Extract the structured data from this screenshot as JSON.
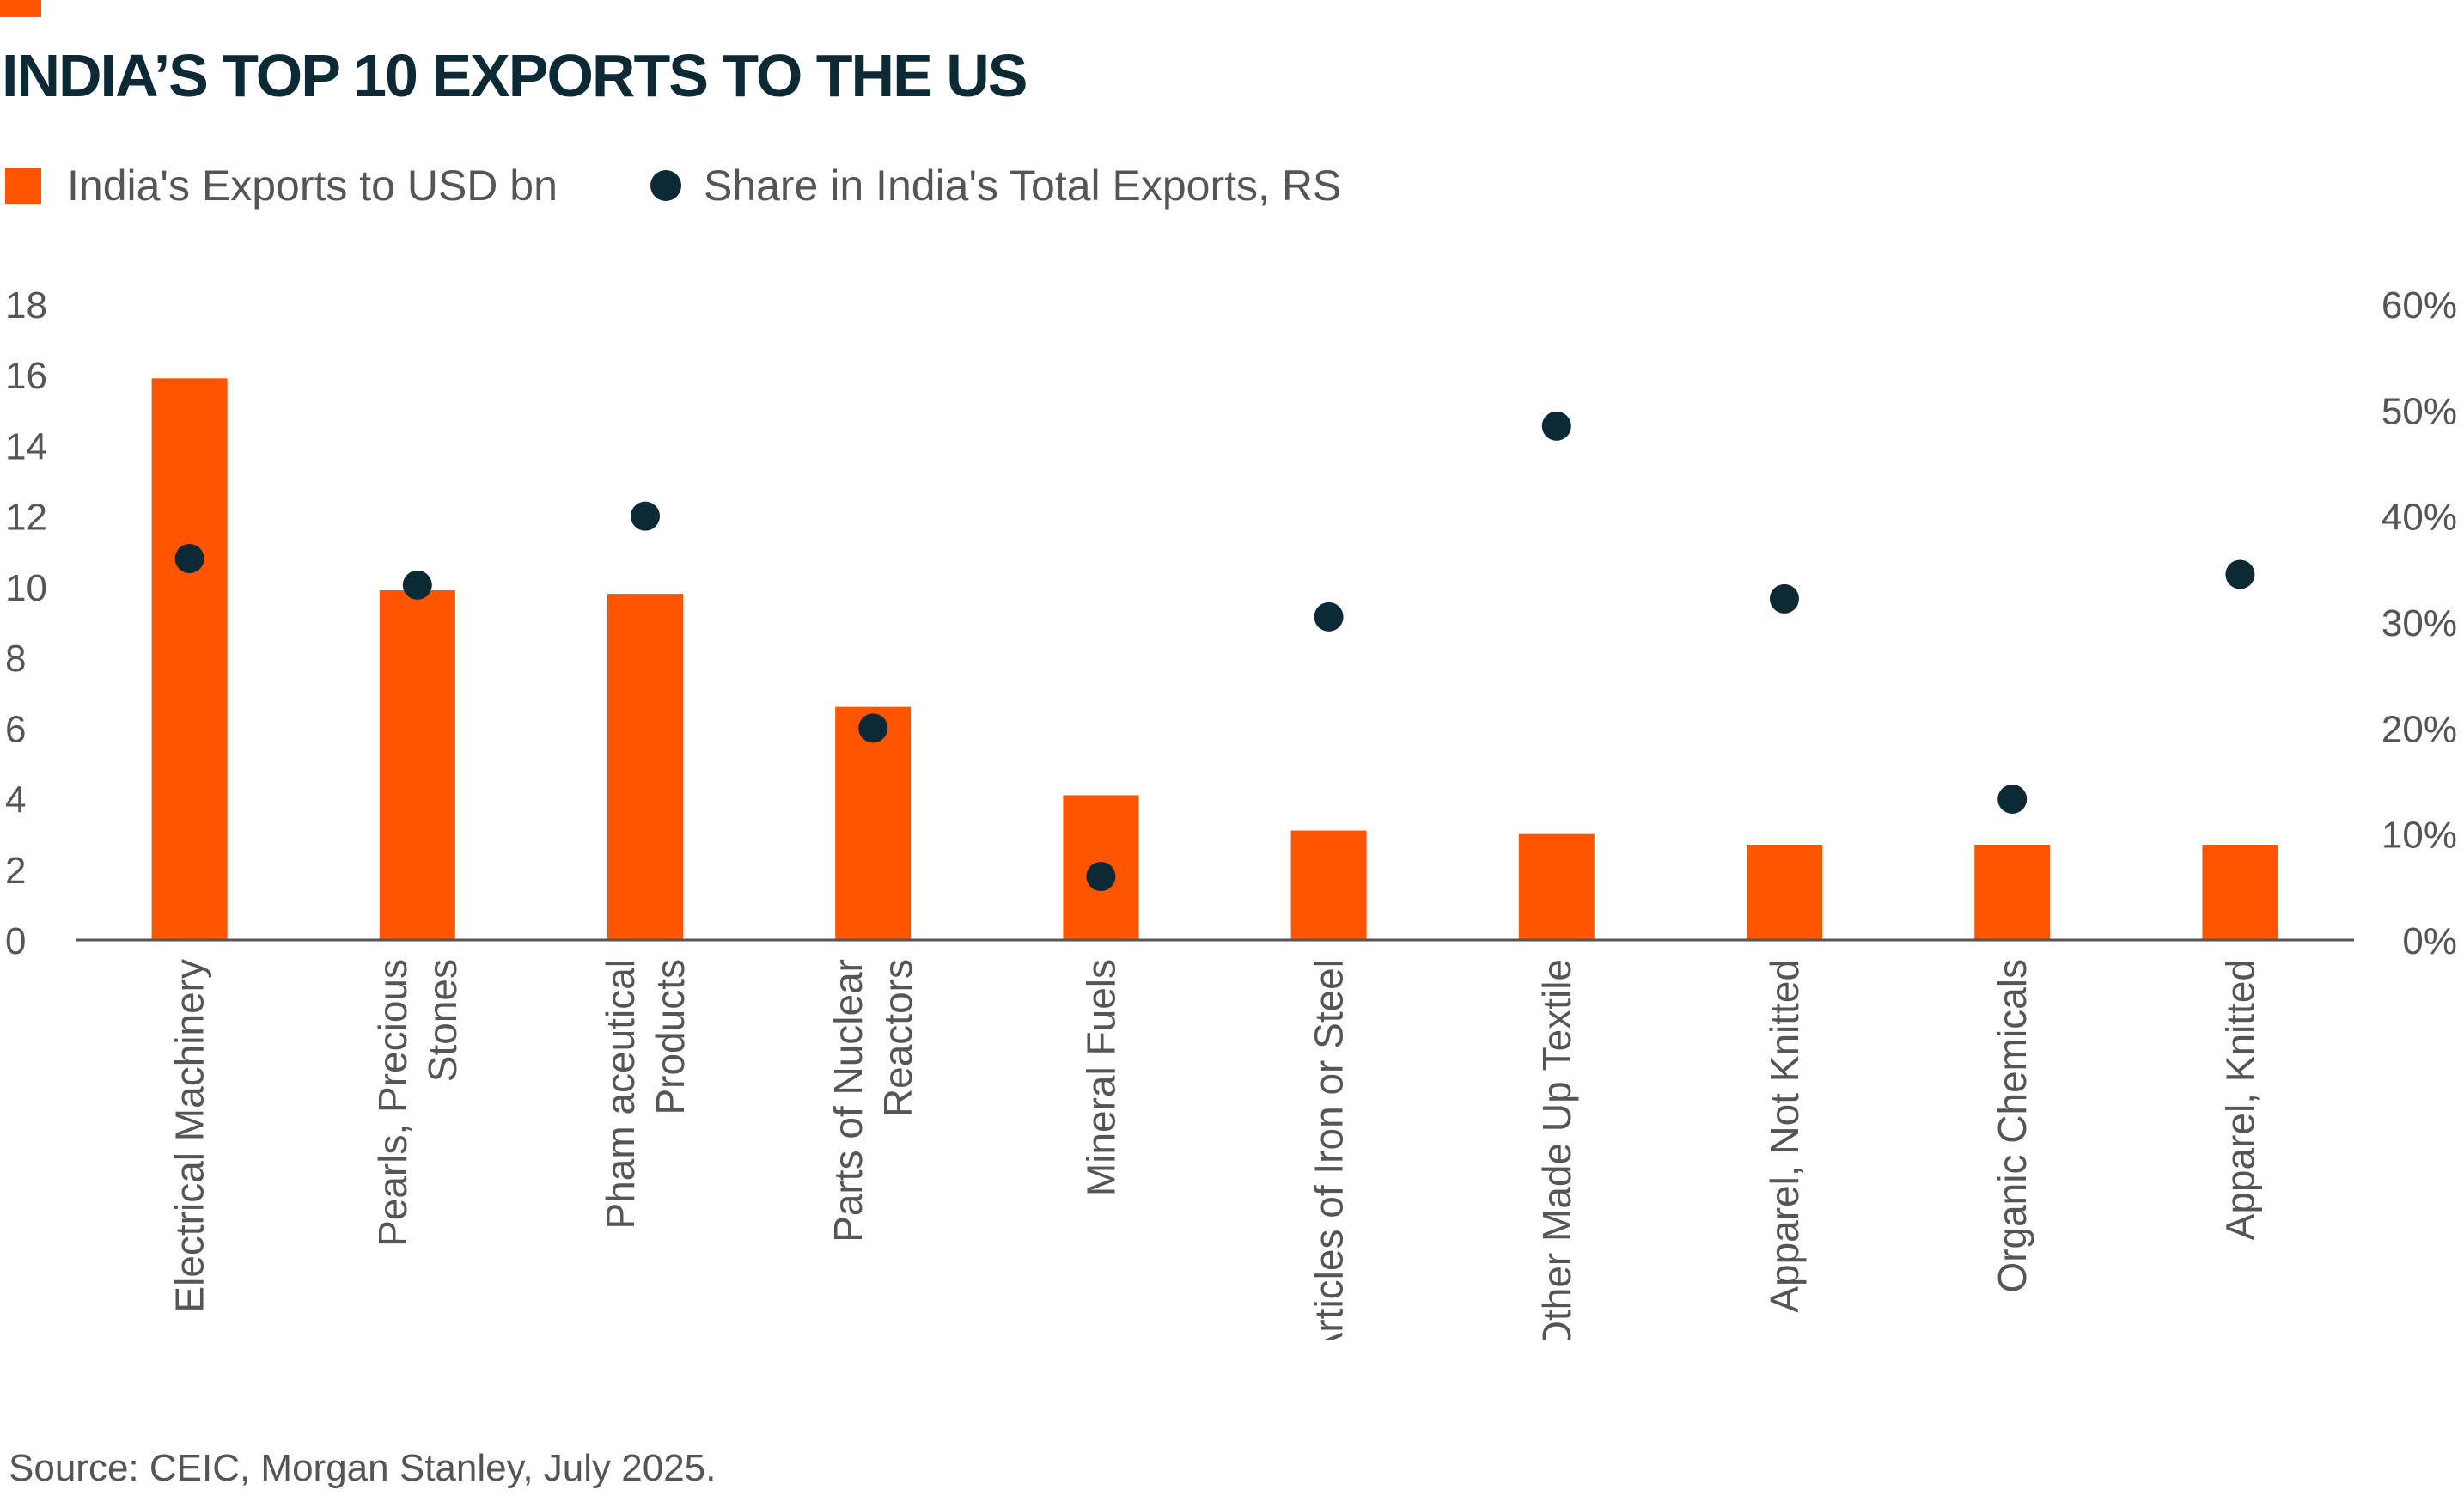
{
  "title": "INDIA’S TOP 10 EXPORTS TO THE US",
  "source": "Source: CEIC, Morgan Stanley, July 2025.",
  "colors": {
    "bar": "#FF5500",
    "dot": "#0B2A35",
    "title": "#0B2A35",
    "text": "#555555",
    "axis": "#555555"
  },
  "chart_data": {
    "type": "bar",
    "title": "INDIA’S TOP 10 EXPORTS TO THE US",
    "categories": [
      [
        "Electrical Machinery"
      ],
      [
        "Pearls, Precious",
        "Stones"
      ],
      [
        "Pham aceutical",
        "Products"
      ],
      [
        "Parts of Nuclear",
        "Reactors"
      ],
      [
        "Mineral Fuels"
      ],
      [
        "Articles of Iron or Steel"
      ],
      [
        "Other Made Up Textile"
      ],
      [
        "Apparel, Not Knitted"
      ],
      [
        "Organic Chemicals"
      ],
      [
        "Apparel, Knitted"
      ]
    ],
    "series": [
      {
        "name": "India's Exports to USD bn",
        "type": "bar",
        "axis": "left",
        "values": [
          15.9,
          9.9,
          9.8,
          6.6,
          4.1,
          3.1,
          3.0,
          2.7,
          2.7,
          2.7
        ]
      },
      {
        "name": "Share in India's Total Exports, RS",
        "type": "scatter",
        "axis": "right",
        "values": [
          0.36,
          0.335,
          0.4,
          0.2,
          0.06,
          0.305,
          0.485,
          0.322,
          0.133,
          0.345
        ]
      }
    ],
    "y_left": {
      "min": 0,
      "max": 18,
      "ticks": [
        "0",
        "2",
        "4",
        "6",
        "8",
        "10",
        "12",
        "14",
        "16",
        "18"
      ]
    },
    "y_right": {
      "min": 0,
      "max": 0.6,
      "ticks": [
        "0%",
        "10%",
        "20%",
        "30%",
        "40%",
        "50%",
        "60%"
      ]
    },
    "legend_position": "top-left",
    "grid": false
  }
}
